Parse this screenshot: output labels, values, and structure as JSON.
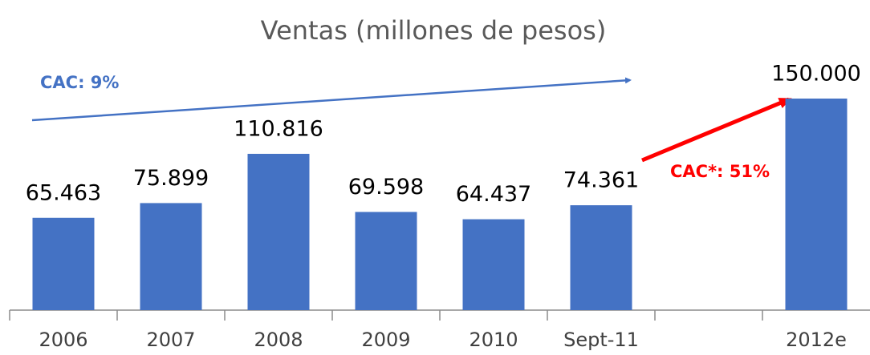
{
  "chart_data": {
    "type": "bar",
    "title": "Ventas (millones de pesos)",
    "categories": [
      "2006",
      "2007",
      "2008",
      "2009",
      "2010",
      "Sept-11",
      null,
      "2012e"
    ],
    "values": [
      65463,
      75899,
      110816,
      69598,
      64437,
      74361,
      null,
      150000
    ],
    "value_labels": [
      "65.463",
      "75.899",
      "110.816",
      "69.598",
      "64.437",
      "74.361",
      null,
      "150.000"
    ],
    "color": "#4472c4",
    "ylim": [
      0,
      160000
    ],
    "annotations": [
      {
        "text": "CAC: 9%",
        "color": "#4472c4"
      },
      {
        "text": "CAC*: 51%",
        "color": "#ff0000"
      }
    ]
  }
}
